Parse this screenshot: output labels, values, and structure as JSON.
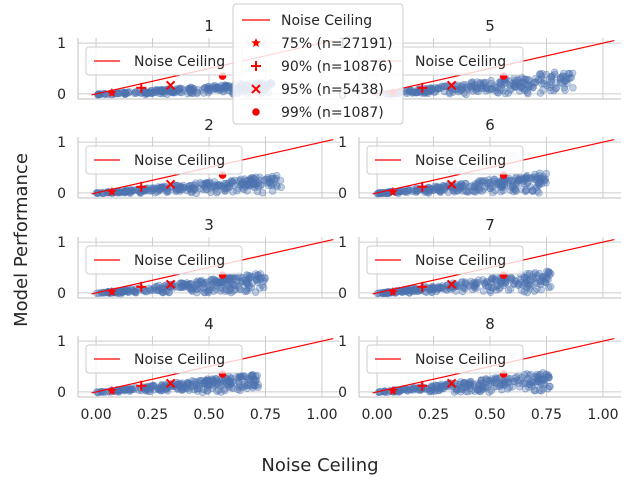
{
  "figure": {
    "xlabel": "Noise Ceiling",
    "ylabel": "Model Performance"
  },
  "colors": {
    "scatter": "#4c72b0",
    "line": "#ff0000",
    "marker": "#ff0000",
    "axis": "#cccccc",
    "grid": "#cccccc",
    "text": "#262626"
  },
  "global_legend": {
    "line_label": "Noise Ceiling",
    "entries": [
      {
        "marker": "star",
        "label": "75% (n=27191)"
      },
      {
        "marker": "plus",
        "label": "90% (n=10876)"
      },
      {
        "marker": "x",
        "label": "95% (n=5438)"
      },
      {
        "marker": "circle",
        "label": "99% (n=1087)"
      }
    ]
  },
  "chart_data": {
    "type": "scatter",
    "grid": true,
    "xlim": [
      -0.08,
      1.08
    ],
    "ylim": [
      -0.1,
      1.1
    ],
    "xticks": [
      "0.00",
      "0.25",
      "0.50",
      "0.75",
      "1.00"
    ],
    "yticks": [
      "0",
      "1"
    ],
    "panel_legend": "Noise Ceiling",
    "reference_line": {
      "name": "Noise Ceiling",
      "x": [
        -0.02,
        1.05
      ],
      "y": [
        -0.02,
        1.05
      ]
    },
    "markers": [
      {
        "shape": "star",
        "x": 0.07,
        "y": 0.02
      },
      {
        "shape": "plus",
        "x": 0.2,
        "y": 0.12
      },
      {
        "shape": "x",
        "x": 0.33,
        "y": 0.17
      },
      {
        "shape": "circle",
        "x": 0.56,
        "y": 0.35
      }
    ],
    "panels": [
      {
        "title": "1",
        "x_max": 0.78,
        "slope": 0.33
      },
      {
        "title": "2",
        "x_max": 0.82,
        "slope": 0.45
      },
      {
        "title": "3",
        "x_max": 0.75,
        "slope": 0.55
      },
      {
        "title": "4",
        "x_max": 0.72,
        "slope": 0.52
      },
      {
        "title": "5",
        "x_max": 0.87,
        "slope": 0.55
      },
      {
        "title": "6",
        "x_max": 0.75,
        "slope": 0.55
      },
      {
        "title": "7",
        "x_max": 0.77,
        "slope": 0.6
      },
      {
        "title": "8",
        "x_max": 0.77,
        "slope": 0.55
      }
    ]
  }
}
